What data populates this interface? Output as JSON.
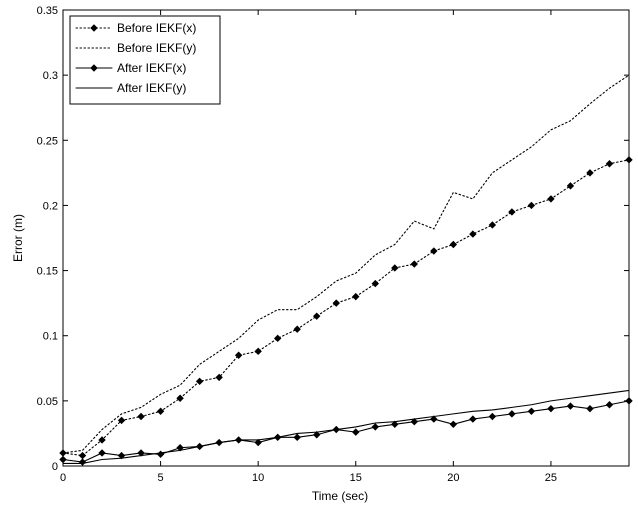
{
  "chart_data": {
    "type": "line",
    "xlabel": "Time (sec)",
    "ylabel": "Error (m)",
    "xlim": [
      0,
      29
    ],
    "ylim": [
      0,
      0.35
    ],
    "x_ticks": [
      "0",
      "5",
      "10",
      "15",
      "20",
      "25"
    ],
    "y_ticks": [
      "0",
      "0.05",
      "0.1",
      "0.15",
      "0.2",
      "0.25",
      "0.3",
      "0.35"
    ],
    "grid": false,
    "legend_position": "top-left",
    "x": [
      0.0,
      1.0,
      2.0,
      3.0,
      4.0,
      5.0,
      6.0,
      7.0,
      8.0,
      9.0,
      10.0,
      11.0,
      12.0,
      13.0,
      14.0,
      15.0,
      16.0,
      17.0,
      18.0,
      19.0,
      20.0,
      21.0,
      22.0,
      23.0,
      24.0,
      25.0,
      26.0,
      27.0,
      28.0,
      29.0
    ],
    "series": [
      {
        "name": "Before IEKF(x)",
        "style": "dotted-diamond",
        "values": [
          0.01,
          0.008,
          0.02,
          0.035,
          0.038,
          0.042,
          0.052,
          0.065,
          0.068,
          0.085,
          0.088,
          0.098,
          0.105,
          0.115,
          0.125,
          0.13,
          0.14,
          0.152,
          0.155,
          0.165,
          0.17,
          0.178,
          0.185,
          0.195,
          0.2,
          0.205,
          0.215,
          0.225,
          0.232,
          0.235
        ]
      },
      {
        "name": "Before IEKF(y)",
        "style": "dotted",
        "values": [
          0.01,
          0.012,
          0.028,
          0.04,
          0.045,
          0.055,
          0.062,
          0.078,
          0.088,
          0.098,
          0.112,
          0.12,
          0.12,
          0.13,
          0.142,
          0.148,
          0.162,
          0.17,
          0.188,
          0.182,
          0.21,
          0.205,
          0.225,
          0.235,
          0.245,
          0.258,
          0.265,
          0.278,
          0.29,
          0.3
        ]
      },
      {
        "name": "After IEKF(x)",
        "style": "solid-diamond",
        "values": [
          0.005,
          0.003,
          0.01,
          0.008,
          0.01,
          0.009,
          0.014,
          0.015,
          0.018,
          0.02,
          0.018,
          0.022,
          0.022,
          0.024,
          0.028,
          0.026,
          0.03,
          0.032,
          0.034,
          0.036,
          0.032,
          0.036,
          0.038,
          0.04,
          0.042,
          0.044,
          0.046,
          0.044,
          0.047,
          0.05
        ]
      },
      {
        "name": "After IEKF(y)",
        "style": "solid",
        "values": [
          0.002,
          0.002,
          0.005,
          0.006,
          0.008,
          0.01,
          0.012,
          0.015,
          0.018,
          0.02,
          0.02,
          0.022,
          0.025,
          0.026,
          0.028,
          0.03,
          0.033,
          0.034,
          0.036,
          0.038,
          0.04,
          0.042,
          0.043,
          0.045,
          0.047,
          0.05,
          0.052,
          0.054,
          0.056,
          0.058
        ]
      }
    ]
  }
}
